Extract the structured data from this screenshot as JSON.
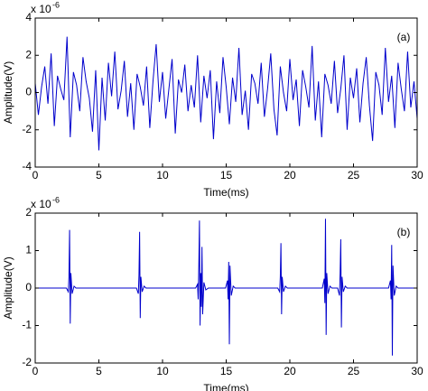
{
  "chart_data": [
    {
      "type": "line",
      "annotation": "(a)",
      "ylabel": "Amplitude(V)",
      "xlabel": "Time(ms)",
      "scale_label": "x 10",
      "scale_exponent": "-6",
      "xlim": [
        0,
        30
      ],
      "xticks": [
        0,
        5,
        10,
        15,
        20,
        25,
        30
      ],
      "ylim": [
        -4,
        4
      ],
      "yticks": [
        -4,
        -2,
        0,
        2,
        4
      ],
      "series": [
        {
          "color": "#0000cc",
          "x": [
            0,
            0.25,
            0.5,
            0.75,
            1,
            1.25,
            1.5,
            1.75,
            2,
            2.25,
            2.5,
            2.75,
            3,
            3.25,
            3.5,
            3.75,
            4,
            4.25,
            4.5,
            4.75,
            5,
            5.25,
            5.5,
            5.75,
            6,
            6.25,
            6.5,
            6.75,
            7,
            7.25,
            7.5,
            7.75,
            8,
            8.25,
            8.5,
            8.75,
            9,
            9.25,
            9.5,
            9.75,
            10,
            10.25,
            10.5,
            10.75,
            11,
            11.25,
            11.5,
            11.75,
            12,
            12.25,
            12.5,
            12.75,
            13,
            13.25,
            13.5,
            13.75,
            14,
            14.25,
            14.5,
            14.75,
            15,
            15.25,
            15.5,
            15.75,
            16,
            16.25,
            16.5,
            16.75,
            17,
            17.25,
            17.5,
            17.75,
            18,
            18.25,
            18.5,
            18.75,
            19,
            19.25,
            19.5,
            19.75,
            20,
            20.25,
            20.5,
            20.75,
            21,
            21.25,
            21.5,
            21.75,
            22,
            22.25,
            22.5,
            22.75,
            23,
            23.25,
            23.5,
            23.75,
            24,
            24.25,
            24.5,
            24.75,
            25,
            25.25,
            25.5,
            25.75,
            26,
            26.25,
            26.5,
            26.75,
            27,
            27.25,
            27.5,
            27.75,
            28,
            28.25,
            28.5,
            28.75,
            29,
            29.25,
            29.5,
            29.75,
            30
          ],
          "values": [
            0.5,
            -1.2,
            0.3,
            1.4,
            -0.6,
            2.1,
            -1.8,
            0.9,
            0.2,
            -0.4,
            3.0,
            -2.4,
            1.1,
            0.4,
            -1.0,
            1.9,
            0.6,
            -0.3,
            -2.1,
            1.2,
            -3.1,
            0.8,
            -1.5,
            1.6,
            -0.2,
            2.2,
            -0.9,
            0.1,
            1.7,
            -1.3,
            0.5,
            -2.0,
            1.0,
            0.3,
            -0.7,
            1.4,
            -1.9,
            0.6,
            2.6,
            -0.5,
            1.1,
            -1.4,
            0.2,
            1.8,
            -2.2,
            0.7,
            0.0,
            1.5,
            -1.0,
            0.4,
            -0.8,
            2.0,
            -1.6,
            0.9,
            -0.3,
            1.2,
            -2.5,
            0.6,
            -1.1,
            1.9,
            0.3,
            -1.7,
            0.8,
            -0.5,
            2.4,
            -1.2,
            0.1,
            -2.0,
            1.0,
            0.5,
            -0.6,
            1.6,
            -1.3,
            0.2,
            2.1,
            -0.9,
            -2.3,
            1.4,
            0.0,
            -1.0,
            1.8,
            -0.4,
            0.7,
            -1.8,
            1.2,
            0.3,
            -0.8,
            2.5,
            -1.5,
            0.6,
            -2.4,
            1.0,
            0.4,
            -0.6,
            1.7,
            -1.1,
            0.2,
            2.0,
            -2.0,
            0.8,
            -0.3,
            1.3,
            -1.6,
            0.5,
            1.9,
            -0.7,
            -2.6,
            1.1,
            0.4,
            -1.2,
            2.4,
            -0.5,
            0.9,
            -1.9,
            1.6,
            0.2,
            -1.0,
            2.2,
            -0.8,
            0.6,
            -1.4
          ]
        }
      ]
    },
    {
      "type": "line",
      "annotation": "(b)",
      "ylabel": "Amplitude(V)",
      "xlabel": "Time(ms)",
      "scale_label": "x 10",
      "scale_exponent": "-6",
      "xlim": [
        0,
        30
      ],
      "xticks": [
        0,
        5,
        10,
        15,
        20,
        25,
        30
      ],
      "ylim": [
        -2,
        2
      ],
      "yticks": [
        -2,
        -1,
        0,
        1,
        2
      ],
      "series": [
        {
          "color": "#0000cc",
          "x": [
            0,
            2.45,
            2.6,
            2.65,
            2.7,
            2.75,
            2.8,
            2.9,
            3.05,
            3.2,
            7.95,
            8.1,
            8.15,
            8.2,
            8.25,
            8.3,
            8.4,
            8.55,
            8.7,
            12.6,
            12.75,
            12.8,
            12.85,
            12.9,
            12.95,
            13.0,
            13.05,
            13.1,
            13.15,
            13.25,
            13.4,
            13.6,
            14.95,
            15.1,
            15.15,
            15.2,
            15.25,
            15.3,
            15.4,
            15.55,
            15.7,
            19.05,
            19.2,
            19.25,
            19.3,
            19.35,
            19.4,
            19.5,
            19.65,
            19.8,
            22.55,
            22.7,
            22.75,
            22.8,
            22.85,
            22.9,
            23.0,
            23.15,
            23.3,
            23.75,
            23.9,
            23.95,
            24.0,
            24.05,
            24.1,
            24.2,
            24.35,
            24.5,
            27.75,
            27.9,
            27.95,
            28.0,
            28.05,
            28.1,
            28.2,
            28.35,
            28.5,
            30
          ],
          "values": [
            0,
            0,
            -0.1,
            0.3,
            1.55,
            -0.95,
            0.4,
            -0.15,
            0.05,
            0,
            0,
            -0.15,
            0.35,
            1.5,
            -0.8,
            0.3,
            -0.1,
            0.05,
            0,
            0,
            0.1,
            -0.3,
            0.6,
            1.8,
            -1.0,
            0.4,
            -0.5,
            1.1,
            -0.7,
            0.15,
            -0.05,
            0,
            0,
            0.2,
            -0.3,
            0.7,
            -1.5,
            0.6,
            -0.2,
            0.05,
            0,
            0,
            -0.1,
            0.3,
            1.2,
            -0.7,
            0.3,
            -0.1,
            0.05,
            0,
            0,
            0.25,
            -0.4,
            1.85,
            -1.25,
            0.4,
            -0.15,
            0.05,
            0,
            0,
            -0.2,
            0.4,
            1.3,
            -1.05,
            0.3,
            -0.1,
            0.05,
            0,
            0,
            0.2,
            -0.3,
            1.15,
            -1.8,
            0.6,
            -0.2,
            0.05,
            0,
            0
          ]
        }
      ]
    }
  ]
}
